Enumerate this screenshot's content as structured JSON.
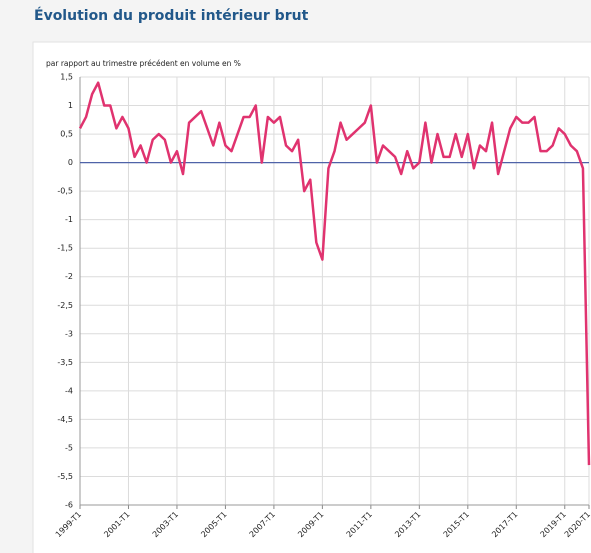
{
  "chart_data": {
    "type": "line",
    "title": "Évolution du produit intérieur brut",
    "subtitle": "par rapport au trimestre précédent en volume en %",
    "categories": [
      "1999-T1",
      null,
      null,
      null,
      null,
      null,
      null,
      null,
      "2001-T1",
      null,
      null,
      null,
      null,
      null,
      null,
      null,
      "2003-T1",
      null,
      null,
      null,
      null,
      null,
      null,
      null,
      "2005-T1",
      null,
      null,
      null,
      null,
      null,
      null,
      null,
      "2007-T1",
      null,
      null,
      null,
      null,
      null,
      null,
      null,
      "2009-T1",
      null,
      null,
      null,
      null,
      null,
      null,
      null,
      "2011-T1",
      null,
      null,
      null,
      null,
      null,
      null,
      null,
      "2013-T1",
      null,
      null,
      null,
      null,
      null,
      null,
      null,
      "2015-T1",
      null,
      null,
      null,
      null,
      null,
      null,
      null,
      "2017-T1",
      null,
      null,
      null,
      null,
      null,
      null,
      null,
      "2019-T1",
      null,
      null,
      null,
      "2020-T1"
    ],
    "series": [
      {
        "color": "#e0336f",
        "values": [
          0.6,
          0.8,
          1.2,
          1.4,
          1.0,
          1.0,
          0.6,
          0.8,
          0.6,
          0.1,
          0.3,
          0.0,
          0.4,
          0.5,
          0.4,
          0.0,
          0.2,
          -0.2,
          0.7,
          0.8,
          0.9,
          0.6,
          0.3,
          0.7,
          0.3,
          0.2,
          0.5,
          0.8,
          0.8,
          1.0,
          0.0,
          0.8,
          0.7,
          0.8,
          0.3,
          0.2,
          0.4,
          -0.5,
          -0.3,
          -1.4,
          -1.7,
          -0.1,
          0.2,
          0.7,
          0.4,
          0.5,
          0.6,
          0.7,
          1.0,
          0.0,
          0.3,
          0.2,
          0.1,
          -0.2,
          0.2,
          -0.1,
          0.0,
          0.7,
          0.0,
          0.5,
          0.1,
          0.1,
          0.5,
          0.1,
          0.5,
          -0.1,
          0.3,
          0.2,
          0.7,
          -0.2,
          0.2,
          0.6,
          0.8,
          0.7,
          0.7,
          0.8,
          0.2,
          0.2,
          0.3,
          0.6,
          0.5,
          0.3,
          0.2,
          -0.1,
          -5.3
        ]
      }
    ],
    "ylim": [
      -6,
      1.5
    ],
    "yticks": [
      {
        "value": 1.5,
        "label": "1,5"
      },
      1,
      {
        "value": 0.5,
        "label": "0,5"
      },
      0,
      {
        "value": -0.5,
        "label": "-0,5"
      },
      -1,
      {
        "value": -1.5,
        "label": "-1,5"
      },
      -2,
      {
        "value": -2.5,
        "label": "-2,5"
      },
      -3,
      {
        "value": -3.5,
        "label": "-3,5"
      },
      -4,
      {
        "value": -4.5,
        "label": "-4,5"
      },
      -5,
      {
        "value": -5.5,
        "label": "-5,5"
      },
      -6
    ],
    "grid": true,
    "zero_line_color": "#4f63a8"
  }
}
